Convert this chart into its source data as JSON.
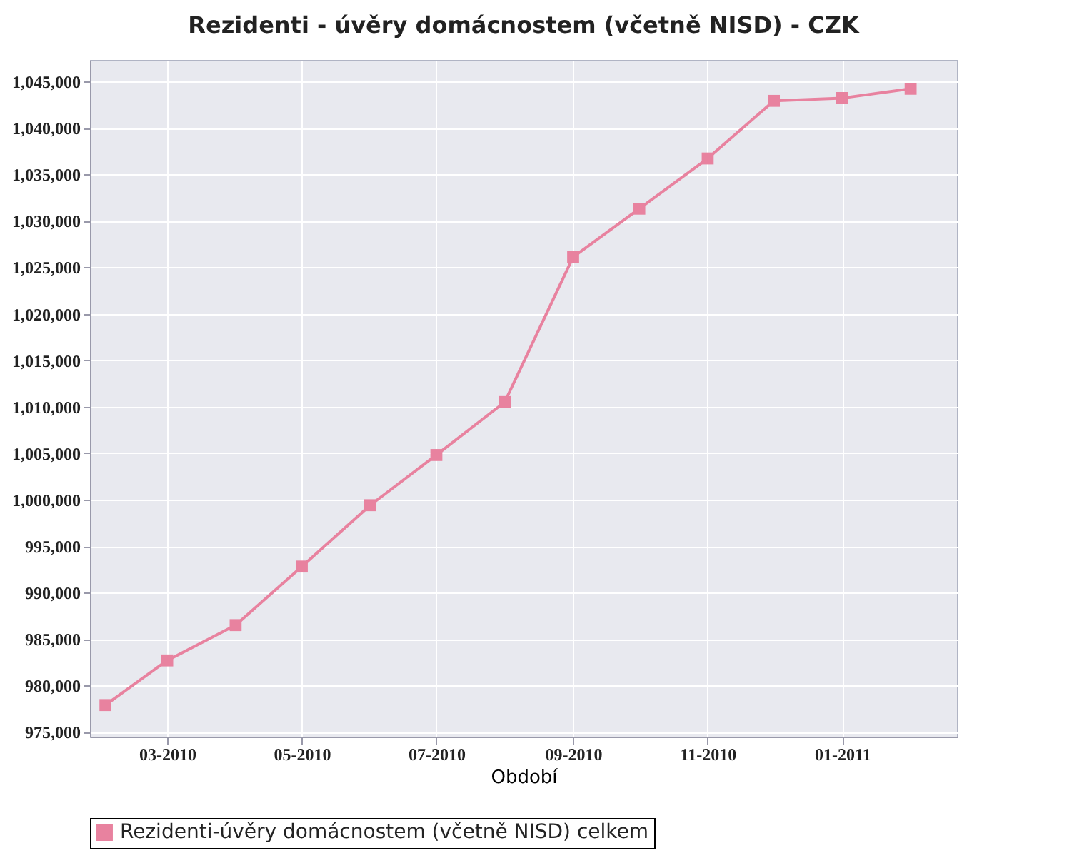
{
  "chart_data": {
    "type": "line",
    "title": "Rezidenti - úvěry domácnostem (včetně NISD) - CZK",
    "xlabel": "Období",
    "x": [
      "2010-02",
      "2010-03",
      "2010-04",
      "2010-05",
      "2010-06",
      "2010-07",
      "2010-08",
      "2010-09",
      "2010-10",
      "2010-11",
      "2010-12",
      "2011-01",
      "2011-02"
    ],
    "series": [
      {
        "name": "Rezidenti-úvěry domácnostem (včetně NISD) celkem",
        "color": "#e8829f",
        "values": [
          977900,
          982700,
          986500,
          992800,
          999400,
          1004800,
          1010500,
          1026100,
          1031300,
          1036700,
          1042900,
          1043200,
          1044200
        ]
      }
    ],
    "xlim": [
      "2010-01-25",
      "2011-02-22"
    ],
    "xticks": [
      {
        "value": "2010-03",
        "label": "03-2010"
      },
      {
        "value": "2010-05",
        "label": "05-2010"
      },
      {
        "value": "2010-07",
        "label": "07-2010"
      },
      {
        "value": "2010-09",
        "label": "09-2010"
      },
      {
        "value": "2010-11",
        "label": "11-2010"
      },
      {
        "value": "2011-01",
        "label": "01-2011"
      }
    ],
    "ylim": [
      974500,
      1047300
    ],
    "yticks": [
      {
        "value": 975000,
        "label": "975,000"
      },
      {
        "value": 980000,
        "label": "980,000"
      },
      {
        "value": 985000,
        "label": "985,000"
      },
      {
        "value": 990000,
        "label": "990,000"
      },
      {
        "value": 995000,
        "label": "995,000"
      },
      {
        "value": 1000000,
        "label": "1,000,000"
      },
      {
        "value": 1005000,
        "label": "1,005,000"
      },
      {
        "value": 1010000,
        "label": "1,010,000"
      },
      {
        "value": 1015000,
        "label": "1,015,000"
      },
      {
        "value": 1020000,
        "label": "1,020,000"
      },
      {
        "value": 1025000,
        "label": "1,025,000"
      },
      {
        "value": 1030000,
        "label": "1,030,000"
      },
      {
        "value": 1035000,
        "label": "1,035,000"
      },
      {
        "value": 1040000,
        "label": "1,040,000"
      },
      {
        "value": 1045000,
        "label": "1,045,000"
      }
    ],
    "grid": true,
    "legend": "bottom",
    "marker": "square",
    "line_style": "solid"
  }
}
